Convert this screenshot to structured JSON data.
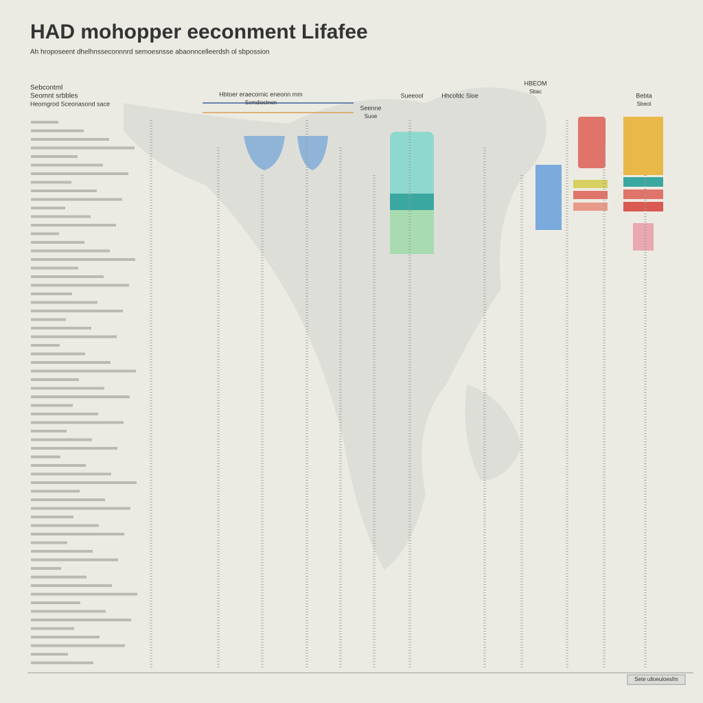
{
  "header": {
    "title": "HAD mohopper eeconment Lifafee",
    "subtitle": "Ah hroposeent dhelhnsseconnnrd semoesnsse abaonncelleerdsh ol sbpossion"
  },
  "left_panel": {
    "heading": "Sebcontml",
    "subheading": "Seomnt srbbles",
    "caption": "Heomgrod Sceonasond sace"
  },
  "columns": [
    {
      "label": "Hbtoer eraecornic eneonn mm",
      "sublabel": "Scmdioctnon"
    },
    {
      "label": "Seenne",
      "sublabel": "Suoe"
    },
    {
      "label": "Sueeool"
    },
    {
      "label": "Hhcofdc Sloe"
    },
    {
      "label": "HBEOM",
      "sublabel": "Sbac"
    },
    {
      "label": "Bebta",
      "sublabel": "Sbeot"
    }
  ],
  "footer": {
    "label": "Sete ulloeuloesfm"
  }
}
